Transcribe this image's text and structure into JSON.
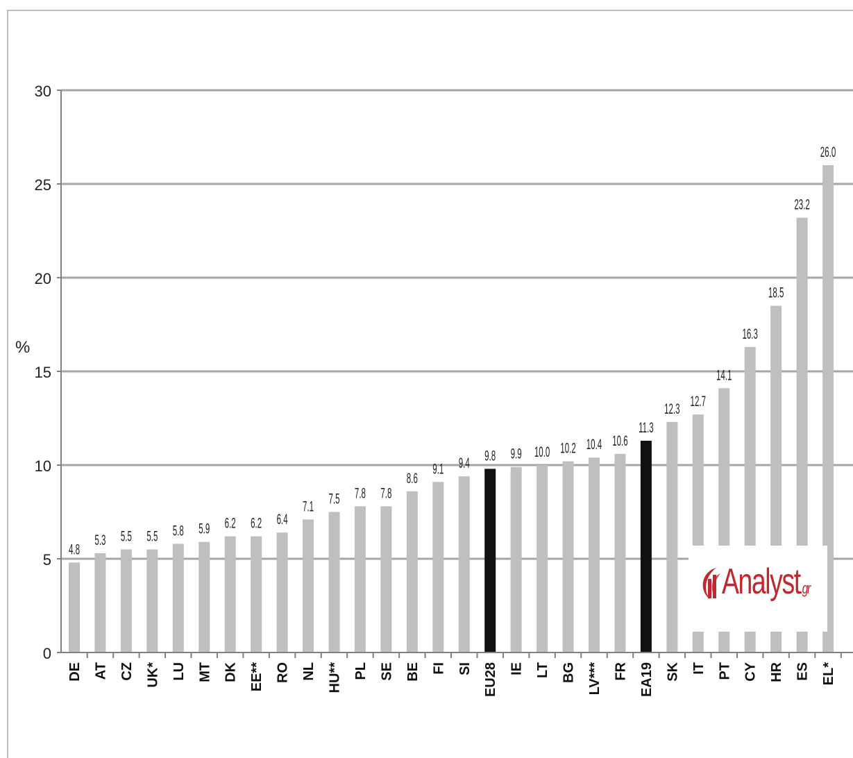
{
  "chart_data": {
    "type": "bar",
    "title": "",
    "xlabel": "",
    "ylabel": "%",
    "ylim": [
      0,
      30
    ],
    "yticks": [
      0,
      5,
      10,
      15,
      20,
      25,
      30
    ],
    "grid": true,
    "categories": [
      "DE",
      "AT",
      "CZ",
      "UK*",
      "LU",
      "MT",
      "DK",
      "EE**",
      "RO",
      "NL",
      "HU**",
      "PL",
      "SE",
      "BE",
      "FI",
      "SI",
      "EU28",
      "IE",
      "LT",
      "BG",
      "LV***",
      "FR",
      "EA19",
      "SK",
      "IT",
      "PT",
      "CY",
      "HR",
      "ES",
      "EL*"
    ],
    "values": [
      4.8,
      5.3,
      5.5,
      5.5,
      5.8,
      5.9,
      6.2,
      6.2,
      6.4,
      7.1,
      7.5,
      7.8,
      7.8,
      8.6,
      9.1,
      9.4,
      9.8,
      9.9,
      10.0,
      10.2,
      10.4,
      10.6,
      11.3,
      12.3,
      12.7,
      14.1,
      16.3,
      18.5,
      23.2,
      26.0
    ],
    "value_labels": [
      "4.8",
      "5.3",
      "5.5",
      "5.5",
      "5.8",
      "5.9",
      "6.2",
      "6.2",
      "6.4",
      "7.1",
      "7.5",
      "7.8",
      "7.8",
      "8.6",
      "9.1",
      "9.4",
      "9.8",
      "9.9",
      "10.0",
      "10.2",
      "10.4",
      "10.6",
      "11.3",
      "12.3",
      "12.7",
      "14.1",
      "16.3",
      "18.5",
      "23.2",
      "26.0"
    ],
    "highlight": [
      "EU28",
      "EA19"
    ],
    "colors": {
      "bar": "#bfbfbf",
      "highlight": "#111111",
      "grid": "#a6a6a6",
      "axis": "#808080"
    }
  },
  "watermark": {
    "text": "Analyst",
    "suffix": ".gr",
    "color": "#c0282d"
  }
}
